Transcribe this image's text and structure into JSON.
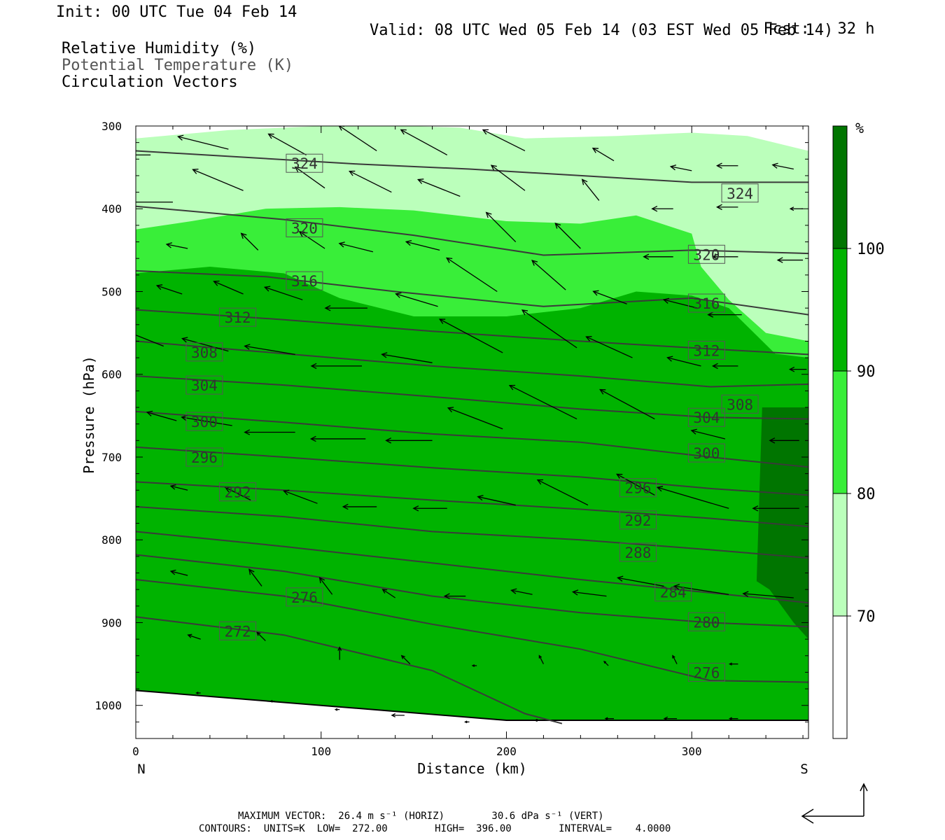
{
  "header": {
    "init": "Init: 00 UTC Tue 04 Feb 14",
    "fcst_label": "Fcst:",
    "fcst_value": "32 h",
    "valid": "Valid: 08 UTC Wed 05 Feb 14 (03 EST Wed 05 Feb 14)"
  },
  "legend": {
    "fields": [
      "Relative Humidity (%)",
      "Potential Temperature (K)",
      "Circulation Vectors"
    ]
  },
  "colors": {
    "rh_70": "#bbffbb",
    "rh_80": "#39ee39",
    "rh_90": "#00b300",
    "rh_100": "#007500",
    "contour": "#3a3a3a",
    "vector": "#000000"
  },
  "chart_data": {
    "type": "cross-section",
    "xlabel": "Distance (km)",
    "ylabel": "Pressure (hPa)",
    "x_ticks": [
      "0",
      "100",
      "200",
      "300"
    ],
    "x_tick_values": [
      0,
      100,
      200,
      300
    ],
    "y_ticks": [
      "300",
      "400",
      "500",
      "600",
      "700",
      "800",
      "900",
      "1000"
    ],
    "y_tick_values": [
      300,
      400,
      500,
      600,
      700,
      800,
      900,
      1000
    ],
    "xlim": [
      0,
      363
    ],
    "ylim": [
      300,
      1040
    ],
    "end_labels": {
      "left": "N",
      "right": "S"
    },
    "colorbar": {
      "unit": "%",
      "levels": [
        70,
        80,
        90,
        100
      ],
      "level_labels": [
        "70",
        "80",
        "90",
        "100"
      ]
    },
    "theta_contours": [
      {
        "value": 324,
        "label": "324",
        "points": [
          [
            0,
            330
          ],
          [
            60,
            338
          ],
          [
            120,
            346
          ],
          [
            180,
            352
          ],
          [
            240,
            360
          ],
          [
            300,
            368
          ],
          [
            363,
            368
          ]
        ]
      },
      {
        "value": 320,
        "label": "320",
        "points": [
          [
            0,
            397
          ],
          [
            80,
            413
          ],
          [
            150,
            432
          ],
          [
            220,
            456
          ],
          [
            300,
            450
          ],
          [
            363,
            454
          ]
        ]
      },
      {
        "value": 316,
        "label": "316",
        "points": [
          [
            0,
            475
          ],
          [
            70,
            482
          ],
          [
            140,
            500
          ],
          [
            220,
            518
          ],
          [
            300,
            508
          ],
          [
            363,
            528
          ]
        ]
      },
      {
        "value": 312,
        "label": "312",
        "points": [
          [
            0,
            522
          ],
          [
            80,
            534
          ],
          [
            160,
            548
          ],
          [
            240,
            560
          ],
          [
            300,
            568
          ],
          [
            363,
            576
          ]
        ]
      },
      {
        "value": 308,
        "label": "308",
        "points": [
          [
            0,
            560
          ],
          [
            80,
            575
          ],
          [
            160,
            590
          ],
          [
            240,
            602
          ],
          [
            310,
            615
          ],
          [
            363,
            612
          ]
        ]
      },
      {
        "value": 304,
        "label": "304",
        "points": [
          [
            0,
            602
          ],
          [
            80,
            613
          ],
          [
            160,
            627
          ],
          [
            240,
            642
          ],
          [
            310,
            652
          ],
          [
            363,
            654
          ]
        ]
      },
      {
        "value": 300,
        "label": "300",
        "points": [
          [
            0,
            645
          ],
          [
            80,
            658
          ],
          [
            160,
            672
          ],
          [
            240,
            682
          ],
          [
            310,
            700
          ],
          [
            363,
            712
          ]
        ]
      },
      {
        "value": 296,
        "label": "296",
        "points": [
          [
            0,
            688
          ],
          [
            80,
            700
          ],
          [
            160,
            713
          ],
          [
            240,
            724
          ],
          [
            310,
            738
          ],
          [
            363,
            746
          ]
        ]
      },
      {
        "value": 292,
        "label": "292",
        "points": [
          [
            0,
            730
          ],
          [
            80,
            740
          ],
          [
            160,
            752
          ],
          [
            240,
            763
          ],
          [
            310,
            774
          ],
          [
            363,
            784
          ]
        ]
      },
      {
        "value": 288,
        "label": "288",
        "points": [
          [
            0,
            760
          ],
          [
            80,
            772
          ],
          [
            160,
            790
          ],
          [
            240,
            800
          ],
          [
            310,
            812
          ],
          [
            363,
            822
          ]
        ]
      },
      {
        "value": 284,
        "label": "284",
        "points": [
          [
            0,
            790
          ],
          [
            80,
            808
          ],
          [
            160,
            828
          ],
          [
            240,
            848
          ],
          [
            310,
            864
          ],
          [
            363,
            876
          ]
        ]
      },
      {
        "value": 280,
        "label": "280",
        "points": [
          [
            0,
            818
          ],
          [
            80,
            838
          ],
          [
            160,
            868
          ],
          [
            240,
            888
          ],
          [
            310,
            900
          ],
          [
            363,
            905
          ]
        ]
      },
      {
        "value": 276,
        "label": "276",
        "points": [
          [
            0,
            848
          ],
          [
            80,
            868
          ],
          [
            160,
            902
          ],
          [
            240,
            932
          ],
          [
            310,
            970
          ],
          [
            363,
            972
          ]
        ]
      },
      {
        "value": 272,
        "label": "272",
        "points": [
          [
            0,
            893
          ],
          [
            80,
            915
          ],
          [
            160,
            958
          ],
          [
            210,
            1010
          ],
          [
            230,
            1022
          ]
        ]
      }
    ],
    "contour_labels": [
      {
        "text": "324",
        "x": 91,
        "p": 345
      },
      {
        "text": "324",
        "x": 326,
        "p": 381
      },
      {
        "text": "320",
        "x": 91,
        "p": 423
      },
      {
        "text": "320",
        "x": 308,
        "p": 455
      },
      {
        "text": "316",
        "x": 91,
        "p": 487
      },
      {
        "text": "316",
        "x": 308,
        "p": 514
      },
      {
        "text": "312",
        "x": 55,
        "p": 531
      },
      {
        "text": "312",
        "x": 308,
        "p": 571
      },
      {
        "text": "308",
        "x": 37,
        "p": 573
      },
      {
        "text": "308",
        "x": 326,
        "p": 636
      },
      {
        "text": "304",
        "x": 37,
        "p": 613
      },
      {
        "text": "304",
        "x": 308,
        "p": 652
      },
      {
        "text": "300",
        "x": 37,
        "p": 657
      },
      {
        "text": "300",
        "x": 308,
        "p": 695
      },
      {
        "text": "296",
        "x": 37,
        "p": 700
      },
      {
        "text": "296",
        "x": 271,
        "p": 737
      },
      {
        "text": "292",
        "x": 55,
        "p": 742
      },
      {
        "text": "292",
        "x": 271,
        "p": 776
      },
      {
        "text": "288",
        "x": 271,
        "p": 815
      },
      {
        "text": "284",
        "x": 290,
        "p": 863
      },
      {
        "text": "280",
        "x": 308,
        "p": 899
      },
      {
        "text": "276",
        "x": 91,
        "p": 869
      },
      {
        "text": "276",
        "x": 308,
        "p": 960
      },
      {
        "text": "272",
        "x": 55,
        "p": 910
      }
    ],
    "rh_regions": [
      {
        "level": 70,
        "points": [
          [
            0,
            315
          ],
          [
            50,
            305
          ],
          [
            120,
            298
          ],
          [
            175,
            302
          ],
          [
            210,
            315
          ],
          [
            260,
            312
          ],
          [
            300,
            308
          ],
          [
            330,
            312
          ],
          [
            363,
            330
          ],
          [
            363,
            850
          ],
          [
            0,
            850
          ]
        ]
      },
      {
        "level": 80,
        "points": [
          [
            0,
            425
          ],
          [
            30,
            415
          ],
          [
            70,
            400
          ],
          [
            110,
            398
          ],
          [
            150,
            402
          ],
          [
            200,
            415
          ],
          [
            240,
            418
          ],
          [
            270,
            408
          ],
          [
            300,
            430
          ],
          [
            305,
            470
          ],
          [
            320,
            510
          ],
          [
            340,
            550
          ],
          [
            363,
            560
          ],
          [
            363,
            1000
          ],
          [
            0,
            1000
          ]
        ]
      },
      {
        "level": 90,
        "points": [
          [
            0,
            478
          ],
          [
            40,
            470
          ],
          [
            80,
            478
          ],
          [
            110,
            508
          ],
          [
            150,
            530
          ],
          [
            200,
            530
          ],
          [
            240,
            520
          ],
          [
            270,
            500
          ],
          [
            300,
            505
          ],
          [
            320,
            520
          ],
          [
            345,
            575
          ],
          [
            363,
            580
          ],
          [
            363,
            1030
          ],
          [
            210,
            1030
          ],
          [
            0,
            985
          ]
        ]
      },
      {
        "level": 100,
        "points": [
          [
            338,
            640
          ],
          [
            363,
            640
          ],
          [
            363,
            920
          ],
          [
            355,
            900
          ],
          [
            342,
            860
          ],
          [
            335,
            850
          ]
        ]
      }
    ],
    "vectors": [
      [
        8,
        335,
        36,
        0
      ],
      [
        50,
        328,
        24,
        -6
      ],
      [
        92,
        335,
        18,
        -10
      ],
      [
        130,
        330,
        18,
        -12
      ],
      [
        168,
        335,
        22,
        -12
      ],
      [
        210,
        330,
        20,
        -10
      ],
      [
        258,
        342,
        10,
        -6
      ],
      [
        300,
        354,
        10,
        -2
      ],
      [
        325,
        348,
        10,
        0
      ],
      [
        355,
        352,
        10,
        -2
      ],
      [
        20,
        392,
        24,
        0
      ],
      [
        58,
        378,
        24,
        -10
      ],
      [
        102,
        375,
        14,
        -10
      ],
      [
        138,
        380,
        20,
        -10
      ],
      [
        175,
        385,
        20,
        -8
      ],
      [
        210,
        378,
        16,
        -12
      ],
      [
        250,
        390,
        8,
        -10
      ],
      [
        290,
        400,
        10,
        0
      ],
      [
        325,
        398,
        10,
        0
      ],
      [
        360,
        400,
        6,
        0
      ],
      [
        28,
        448,
        10,
        -2
      ],
      [
        66,
        450,
        8,
        -8
      ],
      [
        102,
        448,
        12,
        -8
      ],
      [
        128,
        452,
        16,
        -4
      ],
      [
        164,
        450,
        16,
        -4
      ],
      [
        205,
        440,
        14,
        -14
      ],
      [
        240,
        448,
        12,
        -12
      ],
      [
        290,
        458,
        14,
        0
      ],
      [
        325,
        458,
        12,
        0
      ],
      [
        360,
        462,
        12,
        0
      ],
      [
        25,
        503,
        12,
        -4
      ],
      [
        58,
        503,
        14,
        -6
      ],
      [
        90,
        510,
        18,
        -6
      ],
      [
        125,
        520,
        20,
        0
      ],
      [
        163,
        518,
        20,
        -6
      ],
      [
        195,
        500,
        24,
        -16
      ],
      [
        232,
        498,
        16,
        -14
      ],
      [
        265,
        515,
        16,
        -6
      ],
      [
        303,
        520,
        16,
        -4
      ],
      [
        327,
        528,
        16,
        0
      ],
      [
        15,
        566,
        20,
        -8
      ],
      [
        50,
        572,
        22,
        -6
      ],
      [
        86,
        576,
        24,
        -4
      ],
      [
        122,
        590,
        24,
        0
      ],
      [
        160,
        586,
        24,
        -4
      ],
      [
        198,
        574,
        30,
        -16
      ],
      [
        238,
        568,
        26,
        -18
      ],
      [
        268,
        580,
        22,
        -10
      ],
      [
        305,
        590,
        16,
        -4
      ],
      [
        325,
        590,
        12,
        0
      ],
      [
        362,
        594,
        8,
        0
      ],
      [
        22,
        656,
        14,
        -4
      ],
      [
        52,
        662,
        24,
        -4
      ],
      [
        86,
        670,
        24,
        0
      ],
      [
        124,
        678,
        26,
        0
      ],
      [
        160,
        680,
        22,
        0
      ],
      [
        198,
        666,
        26,
        -10
      ],
      [
        238,
        654,
        32,
        -16
      ],
      [
        280,
        654,
        26,
        -14
      ],
      [
        318,
        678,
        16,
        -4
      ],
      [
        358,
        680,
        14,
        0
      ],
      [
        28,
        740,
        8,
        -2
      ],
      [
        62,
        752,
        12,
        -6
      ],
      [
        98,
        756,
        16,
        -6
      ],
      [
        130,
        760,
        16,
        0
      ],
      [
        168,
        762,
        16,
        0
      ],
      [
        205,
        758,
        18,
        -4
      ],
      [
        244,
        758,
        24,
        -12
      ],
      [
        280,
        746,
        18,
        -10
      ],
      [
        320,
        762,
        34,
        -10
      ],
      [
        358,
        762,
        22,
        0
      ],
      [
        28,
        843,
        8,
        -2
      ],
      [
        68,
        856,
        6,
        -8
      ],
      [
        106,
        866,
        6,
        -8
      ],
      [
        140,
        870,
        6,
        -4
      ],
      [
        178,
        868,
        10,
        0
      ],
      [
        214,
        866,
        10,
        -2
      ],
      [
        254,
        868,
        16,
        -2
      ],
      [
        285,
        856,
        22,
        -4
      ],
      [
        320,
        866,
        26,
        -4
      ],
      [
        355,
        870,
        24,
        -2
      ],
      [
        35,
        920,
        6,
        -2
      ],
      [
        70,
        922,
        4,
        -4
      ],
      [
        110,
        945,
        0,
        -6
      ],
      [
        148,
        950,
        4,
        -4
      ],
      [
        184,
        952,
        2,
        0
      ],
      [
        220,
        950,
        2,
        -4
      ],
      [
        255,
        952,
        2,
        -2
      ],
      [
        292,
        950,
        2,
        -4
      ],
      [
        325,
        950,
        4,
        0
      ],
      [
        35,
        985,
        2,
        0
      ],
      [
        75,
        995,
        2,
        0
      ],
      [
        110,
        1005,
        2,
        0
      ],
      [
        145,
        1012,
        6,
        0
      ],
      [
        180,
        1020,
        2,
        0
      ],
      [
        220,
        1018,
        4,
        0
      ],
      [
        258,
        1016,
        4,
        0
      ],
      [
        292,
        1016,
        6,
        0
      ],
      [
        325,
        1016,
        4,
        0
      ]
    ],
    "ground_line": [
      [
        0,
        982
      ],
      [
        100,
        1000
      ],
      [
        200,
        1018
      ],
      [
        300,
        1018
      ],
      [
        363,
        1018
      ]
    ]
  },
  "footer": {
    "max_vector": "MAXIMUM VECTOR:  26.4 m s⁻¹ (HORIZ)        30.6 dPa s⁻¹ (VERT)",
    "contours": "CONTOURS:  UNITS=K  LOW=  272.00        HIGH=  396.00        INTERVAL=    4.0000"
  }
}
